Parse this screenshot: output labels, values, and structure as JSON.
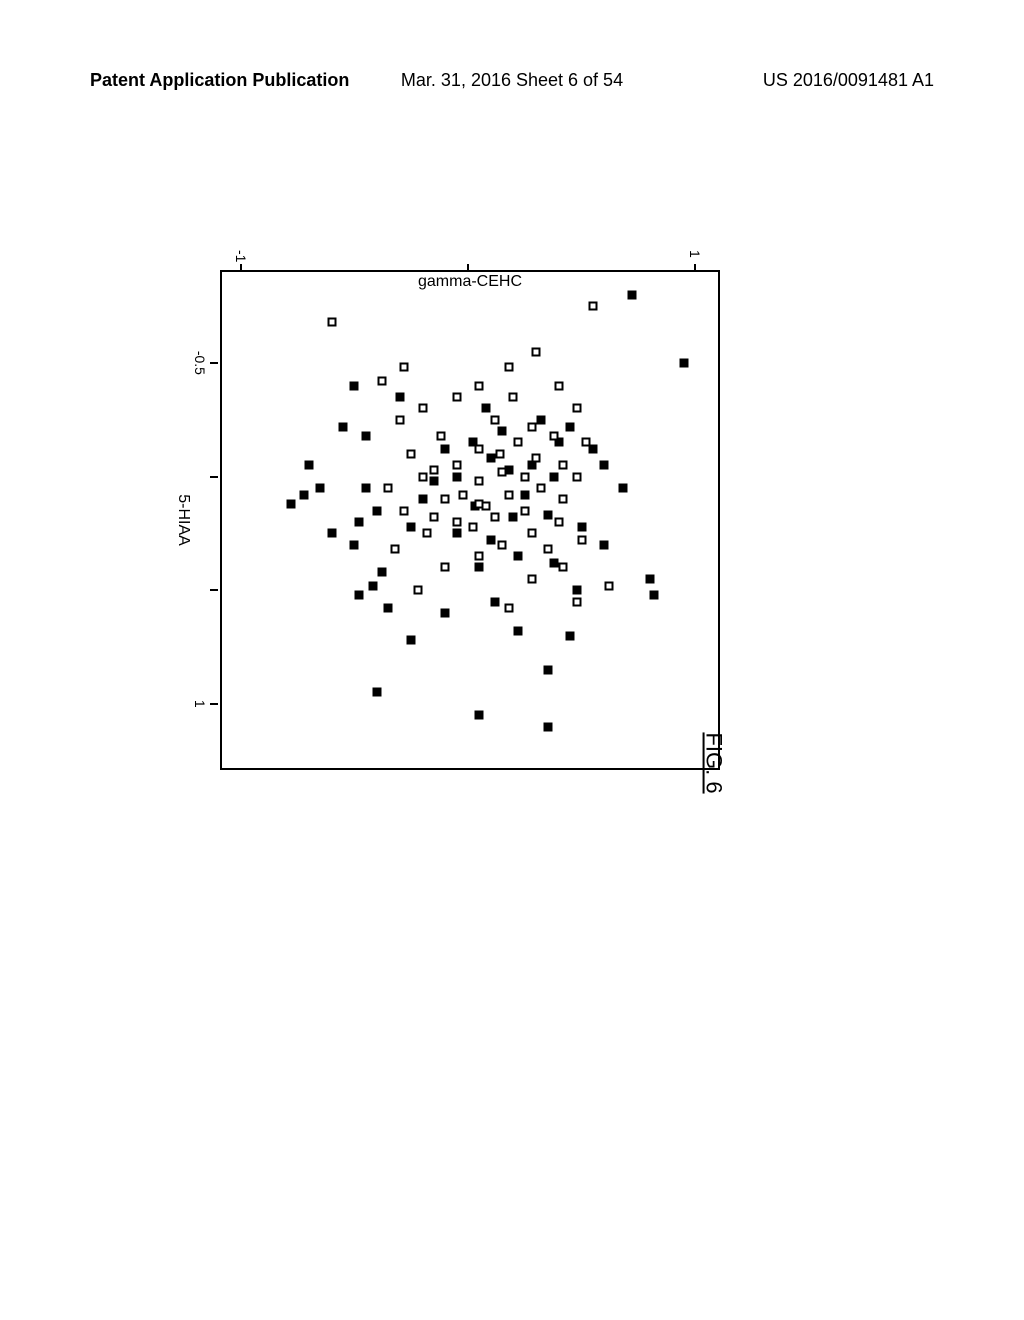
{
  "header": {
    "left": "Patent Application Publication",
    "center": "Mar. 31, 2016  Sheet 6 of 54",
    "right": "US 2016/0091481 A1"
  },
  "figure_label": "FIG. 6",
  "chart": {
    "type": "scatter",
    "xlabel": "5-HIAA",
    "ylabel": "gamma-CEHC",
    "xlim": [
      -0.9,
      1.3
    ],
    "ylim": [
      -1.1,
      1.1
    ],
    "xtick_positions": [
      -0.5,
      0,
      0.5,
      1
    ],
    "xtick_labels": [
      "-0.5",
      "",
      "",
      "1"
    ],
    "ytick_positions": [
      -1,
      0,
      1
    ],
    "ytick_labels": [
      "-1",
      "",
      "1"
    ],
    "background_color": "#ffffff",
    "filled_color": "#000000",
    "hollow_border": "#000000",
    "marker_size": 9,
    "filled_points": [
      [
        -0.8,
        0.72
      ],
      [
        -0.5,
        0.95
      ],
      [
        0.05,
        0.68
      ],
      [
        0.45,
        0.8
      ],
      [
        0.52,
        0.82
      ],
      [
        0.3,
        0.6
      ],
      [
        -0.12,
        0.55
      ],
      [
        -0.05,
        0.6
      ],
      [
        0.22,
        0.5
      ],
      [
        0.5,
        0.48
      ],
      [
        0.7,
        0.45
      ],
      [
        0.85,
        0.35
      ],
      [
        0.68,
        0.22
      ],
      [
        -0.22,
        0.45
      ],
      [
        -0.15,
        0.4
      ],
      [
        0.0,
        0.38
      ],
      [
        -0.25,
        0.32
      ],
      [
        -0.05,
        0.28
      ],
      [
        0.08,
        0.25
      ],
      [
        0.18,
        0.2
      ],
      [
        0.35,
        0.22
      ],
      [
        0.4,
        0.05
      ],
      [
        0.55,
        0.12
      ],
      [
        0.25,
        -0.05
      ],
      [
        -0.08,
        0.1
      ],
      [
        -0.2,
        0.15
      ],
      [
        -0.3,
        0.08
      ],
      [
        -0.12,
        -0.1
      ],
      [
        0.02,
        -0.15
      ],
      [
        0.1,
        -0.2
      ],
      [
        0.22,
        -0.25
      ],
      [
        -0.35,
        -0.3
      ],
      [
        -0.4,
        -0.5
      ],
      [
        0.05,
        -0.45
      ],
      [
        0.15,
        -0.4
      ],
      [
        0.3,
        -0.5
      ],
      [
        0.48,
        -0.42
      ],
      [
        0.58,
        -0.35
      ],
      [
        0.72,
        -0.25
      ],
      [
        0.95,
        -0.4
      ],
      [
        1.05,
        0.05
      ],
      [
        1.1,
        0.35
      ],
      [
        0.05,
        -0.65
      ],
      [
        0.08,
        -0.72
      ],
      [
        -0.05,
        -0.7
      ],
      [
        -0.18,
        -0.45
      ],
      [
        0.42,
        -0.38
      ],
      [
        0.52,
        -0.48
      ],
      [
        0.6,
        -0.1
      ],
      [
        -0.15,
        0.02
      ],
      [
        0.0,
        -0.05
      ],
      [
        0.13,
        0.03
      ],
      [
        0.28,
        0.1
      ],
      [
        -0.03,
        0.18
      ],
      [
        0.17,
        0.35
      ],
      [
        0.38,
        0.38
      ],
      [
        -0.22,
        -0.55
      ],
      [
        0.25,
        -0.6
      ],
      [
        0.2,
        -0.48
      ],
      [
        0.12,
        -0.78
      ]
    ],
    "hollow_points": [
      [
        -0.75,
        0.55
      ],
      [
        -0.68,
        -0.6
      ],
      [
        -0.55,
        0.3
      ],
      [
        -0.48,
        0.18
      ],
      [
        -0.4,
        0.4
      ],
      [
        -0.4,
        0.05
      ],
      [
        -0.35,
        0.2
      ],
      [
        -0.35,
        -0.05
      ],
      [
        -0.3,
        0.48
      ],
      [
        -0.3,
        -0.2
      ],
      [
        -0.25,
        0.12
      ],
      [
        -0.25,
        -0.3
      ],
      [
        -0.22,
        0.28
      ],
      [
        -0.18,
        0.38
      ],
      [
        -0.18,
        -0.12
      ],
      [
        -0.15,
        0.52
      ],
      [
        -0.15,
        0.22
      ],
      [
        -0.12,
        0.05
      ],
      [
        -0.1,
        -0.25
      ],
      [
        -0.08,
        0.3
      ],
      [
        -0.05,
        0.42
      ],
      [
        -0.05,
        -0.05
      ],
      [
        -0.02,
        0.15
      ],
      [
        0.0,
        0.48
      ],
      [
        0.0,
        -0.2
      ],
      [
        0.02,
        0.05
      ],
      [
        0.05,
        0.32
      ],
      [
        0.05,
        -0.35
      ],
      [
        0.08,
        0.18
      ],
      [
        0.1,
        0.42
      ],
      [
        0.1,
        -0.1
      ],
      [
        0.12,
        0.05
      ],
      [
        0.15,
        0.25
      ],
      [
        0.15,
        -0.28
      ],
      [
        0.18,
        0.12
      ],
      [
        0.2,
        0.4
      ],
      [
        0.2,
        -0.05
      ],
      [
        0.22,
        0.02
      ],
      [
        0.25,
        0.28
      ],
      [
        0.25,
        -0.18
      ],
      [
        0.28,
        0.5
      ],
      [
        0.3,
        0.15
      ],
      [
        0.32,
        -0.32
      ],
      [
        0.35,
        0.05
      ],
      [
        0.4,
        0.42
      ],
      [
        0.4,
        -0.1
      ],
      [
        0.45,
        0.28
      ],
      [
        0.48,
        0.62
      ],
      [
        0.5,
        -0.22
      ],
      [
        0.55,
        0.48
      ],
      [
        0.58,
        0.18
      ],
      [
        0.08,
        -0.02
      ],
      [
        0.13,
        0.08
      ],
      [
        -0.03,
        -0.15
      ],
      [
        -0.42,
        -0.38
      ],
      [
        -0.48,
        -0.28
      ],
      [
        0.32,
        0.35
      ],
      [
        0.0,
        0.25
      ],
      [
        -0.1,
        0.14
      ],
      [
        0.18,
        -0.15
      ]
    ]
  }
}
